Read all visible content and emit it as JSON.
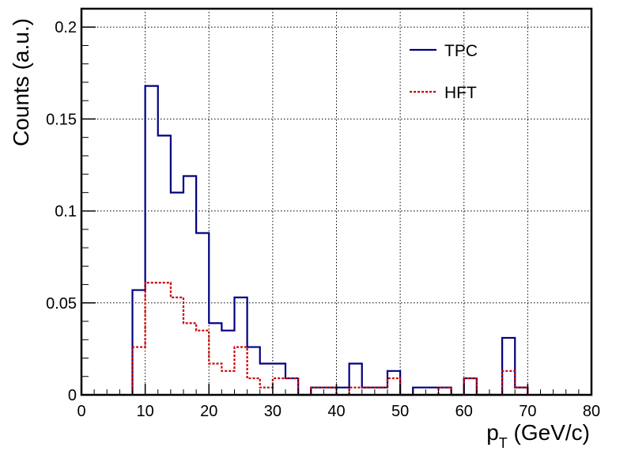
{
  "chart_data": {
    "type": "histogram",
    "xlabel_main": "p",
    "xlabel_sub": "T",
    "xlabel_unit": " (GeV/c)",
    "ylabel": "Counts (a.u.)",
    "xlim": [
      0,
      80
    ],
    "ylim": [
      0,
      0.21
    ],
    "x_ticks": [
      "0",
      "10",
      "20",
      "30",
      "40",
      "50",
      "60",
      "70",
      "80"
    ],
    "y_ticks": [
      "0",
      "0.05",
      "0.1",
      "0.15",
      "0.2"
    ],
    "grid": true,
    "legend_position": "top-right",
    "bin_edges": [
      0,
      2,
      4,
      6,
      8,
      10,
      12,
      14,
      16,
      18,
      20,
      22,
      24,
      26,
      28,
      30,
      32,
      34,
      36,
      38,
      40,
      42,
      44,
      46,
      48,
      50,
      52,
      54,
      56,
      58,
      60,
      62,
      64,
      66,
      68,
      70,
      72,
      74,
      76,
      78,
      80
    ],
    "series": [
      {
        "name": "TPC",
        "color": "#000080",
        "style": "solid",
        "values": [
          0,
          0,
          0,
          0,
          0.057,
          0.168,
          0.141,
          0.11,
          0.119,
          0.088,
          0.039,
          0.035,
          0.053,
          0.026,
          0.017,
          0.017,
          0.009,
          0,
          0.004,
          0.004,
          0.004,
          0.017,
          0.004,
          0.004,
          0.013,
          0,
          0.004,
          0.004,
          0.004,
          0,
          0.009,
          0,
          0,
          0.031,
          0.004,
          0,
          0,
          0,
          0,
          0
        ]
      },
      {
        "name": "HFT",
        "color": "#cc0000",
        "style": "dashed",
        "values": [
          0,
          0,
          0,
          0,
          0.026,
          0.061,
          0.061,
          0.053,
          0.039,
          0.035,
          0.017,
          0.013,
          0.026,
          0.009,
          0.004,
          0.009,
          0.009,
          0,
          0.004,
          0.004,
          0,
          0.004,
          0.004,
          0.004,
          0.009,
          0,
          0,
          0,
          0.004,
          0,
          0.009,
          0,
          0,
          0.013,
          0.004,
          0,
          0,
          0,
          0,
          0
        ]
      }
    ]
  }
}
